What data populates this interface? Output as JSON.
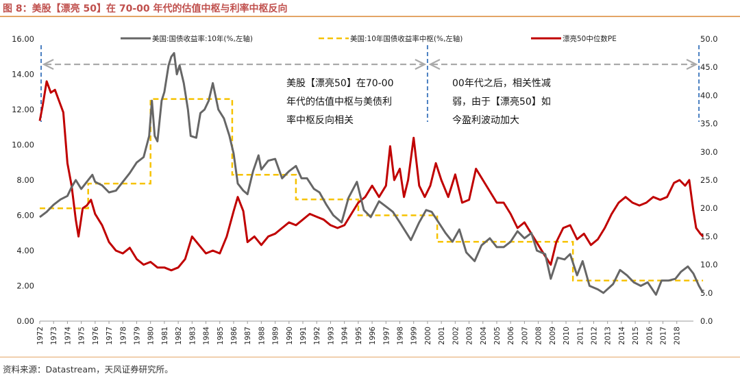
{
  "title": "图 8：美股【漂亮 50】在 70-00 年代的估值中枢与利率中枢反向",
  "source": "资料来源：Datastream，天风证券研究所。",
  "colors": {
    "gray_series": "#666666",
    "yellow_dash": "#f6c200",
    "red_series": "#c00000",
    "divider": "#4a7fc1",
    "arrow": "#aaaaaa"
  },
  "annotations": {
    "left": [
      "美股【漂亮50】在70-00",
      "年代的估值中枢与美债利",
      "率中枢反向相关"
    ],
    "right": [
      "00年代之后，相关性减",
      "弱，由于【漂亮50】如",
      "今盈利波动加大"
    ]
  },
  "chart_data": {
    "type": "line",
    "xlabel": "",
    "ylabel_left": "",
    "ylabel_right": "",
    "x_ticks": [
      "1972",
      "1973",
      "1974",
      "1975",
      "1976",
      "1977",
      "1978",
      "1979",
      "1980",
      "1981",
      "1982",
      "1983",
      "1984",
      "1985",
      "1986",
      "1987",
      "1988",
      "1989",
      "1990",
      "1991",
      "1992",
      "1993",
      "1994",
      "1995",
      "1996",
      "1997",
      "1998",
      "1999",
      "2000",
      "2001",
      "2002",
      "2003",
      "2004",
      "2005",
      "2006",
      "2007",
      "2008",
      "2009",
      "2010",
      "2011",
      "2012",
      "2013",
      "2014",
      "2015",
      "2016",
      "2017",
      "2018"
    ],
    "xlim": [
      1972,
      2019.2
    ],
    "ylim_left": [
      0,
      16
    ],
    "ylim_right": [
      0,
      50
    ],
    "y_ticks_left": [
      "0.00",
      "2.00",
      "4.00",
      "6.00",
      "8.00",
      "10.00",
      "12.00",
      "14.00",
      "16.00"
    ],
    "y_ticks_right": [
      "0.0",
      "5.0",
      "10.0",
      "15.0",
      "20.0",
      "25.0",
      "30.0",
      "35.0",
      "40.0",
      "45.0",
      "50.0"
    ],
    "legend_position": "top",
    "series": [
      {
        "name": "美国:国债收益率:10年(%,左轴)",
        "axis": "left",
        "style": "solid-gray",
        "points": [
          [
            1972.0,
            5.9
          ],
          [
            1972.5,
            6.2
          ],
          [
            1973.0,
            6.6
          ],
          [
            1973.5,
            6.9
          ],
          [
            1974.0,
            7.1
          ],
          [
            1974.3,
            7.6
          ],
          [
            1974.6,
            8.0
          ],
          [
            1975.0,
            7.5
          ],
          [
            1975.5,
            8.0
          ],
          [
            1975.8,
            8.3
          ],
          [
            1976.0,
            7.9
          ],
          [
            1976.5,
            7.7
          ],
          [
            1977.0,
            7.3
          ],
          [
            1977.5,
            7.4
          ],
          [
            1978.0,
            7.9
          ],
          [
            1978.5,
            8.4
          ],
          [
            1979.0,
            9.0
          ],
          [
            1979.5,
            9.3
          ],
          [
            1979.9,
            10.5
          ],
          [
            1980.1,
            12.5
          ],
          [
            1980.3,
            10.5
          ],
          [
            1980.5,
            10.2
          ],
          [
            1980.8,
            12.5
          ],
          [
            1981.0,
            13.0
          ],
          [
            1981.3,
            14.5
          ],
          [
            1981.5,
            15.0
          ],
          [
            1981.7,
            15.2
          ],
          [
            1981.9,
            14.0
          ],
          [
            1982.1,
            14.5
          ],
          [
            1982.4,
            13.5
          ],
          [
            1982.7,
            12.0
          ],
          [
            1982.9,
            10.5
          ],
          [
            1983.3,
            10.4
          ],
          [
            1983.6,
            11.8
          ],
          [
            1983.9,
            12.0
          ],
          [
            1984.2,
            12.5
          ],
          [
            1984.5,
            13.5
          ],
          [
            1984.9,
            12.0
          ],
          [
            1985.3,
            11.5
          ],
          [
            1985.7,
            10.5
          ],
          [
            1986.0,
            9.5
          ],
          [
            1986.3,
            7.8
          ],
          [
            1986.7,
            7.4
          ],
          [
            1987.0,
            7.2
          ],
          [
            1987.4,
            8.5
          ],
          [
            1987.8,
            9.4
          ],
          [
            1988.0,
            8.6
          ],
          [
            1988.5,
            9.1
          ],
          [
            1989.0,
            9.2
          ],
          [
            1989.5,
            8.1
          ],
          [
            1990.0,
            8.5
          ],
          [
            1990.5,
            8.8
          ],
          [
            1990.9,
            8.1
          ],
          [
            1991.3,
            8.1
          ],
          [
            1991.8,
            7.5
          ],
          [
            1992.2,
            7.3
          ],
          [
            1992.7,
            6.6
          ],
          [
            1993.2,
            6.0
          ],
          [
            1993.8,
            5.6
          ],
          [
            1994.3,
            7.0
          ],
          [
            1994.9,
            7.9
          ],
          [
            1995.4,
            6.3
          ],
          [
            1995.9,
            5.9
          ],
          [
            1996.5,
            6.8
          ],
          [
            1997.0,
            6.5
          ],
          [
            1997.5,
            6.2
          ],
          [
            1998.0,
            5.6
          ],
          [
            1998.8,
            4.6
          ],
          [
            1999.4,
            5.6
          ],
          [
            1999.9,
            6.3
          ],
          [
            2000.3,
            6.2
          ],
          [
            2000.8,
            5.6
          ],
          [
            2001.3,
            5.0
          ],
          [
            2001.8,
            4.5
          ],
          [
            2002.3,
            5.2
          ],
          [
            2002.8,
            3.9
          ],
          [
            2003.4,
            3.4
          ],
          [
            2003.9,
            4.3
          ],
          [
            2004.5,
            4.7
          ],
          [
            2005.0,
            4.2
          ],
          [
            2005.5,
            4.2
          ],
          [
            2006.0,
            4.5
          ],
          [
            2006.5,
            5.1
          ],
          [
            2007.0,
            4.7
          ],
          [
            2007.5,
            5.0
          ],
          [
            2007.9,
            4.0
          ],
          [
            2008.5,
            3.8
          ],
          [
            2008.9,
            2.4
          ],
          [
            2009.4,
            3.6
          ],
          [
            2009.9,
            3.5
          ],
          [
            2010.3,
            3.8
          ],
          [
            2010.8,
            2.6
          ],
          [
            2011.2,
            3.4
          ],
          [
            2011.7,
            2.0
          ],
          [
            2012.3,
            1.8
          ],
          [
            2012.7,
            1.6
          ],
          [
            2013.4,
            2.1
          ],
          [
            2013.9,
            2.9
          ],
          [
            2014.4,
            2.6
          ],
          [
            2014.9,
            2.2
          ],
          [
            2015.4,
            2.0
          ],
          [
            2015.9,
            2.2
          ],
          [
            2016.5,
            1.5
          ],
          [
            2016.9,
            2.3
          ],
          [
            2017.4,
            2.3
          ],
          [
            2017.9,
            2.4
          ],
          [
            2018.3,
            2.8
          ],
          [
            2018.8,
            3.1
          ],
          [
            2019.2,
            2.7
          ],
          [
            2019.6,
            2.0
          ],
          [
            2019.9,
            1.6
          ]
        ]
      },
      {
        "name": "美国:10年国债收益率中枢(%,左轴)",
        "axis": "left",
        "style": "dashed-yellow",
        "points": [
          [
            1972.0,
            6.4
          ],
          [
            1975.5,
            6.4
          ],
          [
            1975.5,
            7.8
          ],
          [
            1980.0,
            7.8
          ],
          [
            1980.0,
            12.6
          ],
          [
            1985.9,
            12.6
          ],
          [
            1985.9,
            8.3
          ],
          [
            1990.5,
            8.3
          ],
          [
            1990.5,
            6.9
          ],
          [
            1995.0,
            6.9
          ],
          [
            1995.0,
            6.0
          ],
          [
            2000.7,
            6.0
          ],
          [
            2000.7,
            4.5
          ],
          [
            2010.5,
            4.5
          ],
          [
            2010.5,
            2.3
          ],
          [
            2019.9,
            2.3
          ]
        ]
      },
      {
        "name": "漂亮50中位数PE",
        "axis": "right",
        "style": "solid-red",
        "points": [
          [
            1972.0,
            35.5
          ],
          [
            1972.2,
            38.0
          ],
          [
            1972.5,
            42.5
          ],
          [
            1972.8,
            40.5
          ],
          [
            1973.1,
            41.0
          ],
          [
            1973.4,
            39.0
          ],
          [
            1973.7,
            37.0
          ],
          [
            1974.0,
            28.0
          ],
          [
            1974.3,
            24.0
          ],
          [
            1974.6,
            18.0
          ],
          [
            1974.8,
            15.0
          ],
          [
            1975.1,
            20.0
          ],
          [
            1975.4,
            20.5
          ],
          [
            1975.7,
            21.5
          ],
          [
            1976.0,
            19.0
          ],
          [
            1976.5,
            17.0
          ],
          [
            1977.0,
            14.0
          ],
          [
            1977.5,
            12.5
          ],
          [
            1978.0,
            12.0
          ],
          [
            1978.5,
            13.0
          ],
          [
            1979.0,
            11.0
          ],
          [
            1979.5,
            10.0
          ],
          [
            1980.0,
            10.5
          ],
          [
            1980.5,
            9.5
          ],
          [
            1981.0,
            9.5
          ],
          [
            1981.5,
            9.0
          ],
          [
            1982.0,
            9.5
          ],
          [
            1982.5,
            11.0
          ],
          [
            1983.0,
            15.0
          ],
          [
            1983.5,
            13.5
          ],
          [
            1984.0,
            12.0
          ],
          [
            1984.5,
            12.5
          ],
          [
            1985.0,
            12.0
          ],
          [
            1985.5,
            15.0
          ],
          [
            1986.0,
            19.5
          ],
          [
            1986.3,
            22.0
          ],
          [
            1986.7,
            19.5
          ],
          [
            1987.0,
            14.0
          ],
          [
            1987.5,
            15.0
          ],
          [
            1988.0,
            13.5
          ],
          [
            1988.5,
            15.0
          ],
          [
            1989.0,
            15.5
          ],
          [
            1989.5,
            16.5
          ],
          [
            1990.0,
            17.5
          ],
          [
            1990.5,
            17.0
          ],
          [
            1991.0,
            18.0
          ],
          [
            1991.5,
            19.0
          ],
          [
            1992.0,
            18.5
          ],
          [
            1992.5,
            18.0
          ],
          [
            1993.0,
            17.0
          ],
          [
            1993.5,
            16.5
          ],
          [
            1994.0,
            17.0
          ],
          [
            1994.5,
            19.0
          ],
          [
            1995.0,
            21.0
          ],
          [
            1995.5,
            22.0
          ],
          [
            1996.0,
            24.0
          ],
          [
            1996.5,
            22.0
          ],
          [
            1997.0,
            24.0
          ],
          [
            1997.3,
            31.0
          ],
          [
            1997.6,
            25.0
          ],
          [
            1998.0,
            27.0
          ],
          [
            1998.3,
            22.0
          ],
          [
            1998.6,
            25.0
          ],
          [
            1999.0,
            32.5
          ],
          [
            1999.4,
            24.0
          ],
          [
            1999.8,
            22.0
          ],
          [
            2000.2,
            24.0
          ],
          [
            2000.6,
            28.0
          ],
          [
            2001.0,
            25.0
          ],
          [
            2001.5,
            22.0
          ],
          [
            2002.0,
            26.0
          ],
          [
            2002.5,
            21.0
          ],
          [
            2003.0,
            21.5
          ],
          [
            2003.5,
            27.0
          ],
          [
            2004.0,
            25.0
          ],
          [
            2004.5,
            23.0
          ],
          [
            2005.0,
            21.0
          ],
          [
            2005.5,
            21.0
          ],
          [
            2006.0,
            19.0
          ],
          [
            2006.5,
            16.5
          ],
          [
            2007.0,
            17.5
          ],
          [
            2007.5,
            15.5
          ],
          [
            2008.0,
            13.5
          ],
          [
            2008.5,
            11.5
          ],
          [
            2008.9,
            10.0
          ],
          [
            2009.3,
            14.0
          ],
          [
            2009.8,
            16.5
          ],
          [
            2010.3,
            17.0
          ],
          [
            2010.8,
            14.5
          ],
          [
            2011.3,
            15.5
          ],
          [
            2011.8,
            13.5
          ],
          [
            2012.3,
            14.5
          ],
          [
            2012.8,
            16.5
          ],
          [
            2013.3,
            19.0
          ],
          [
            2013.8,
            21.0
          ],
          [
            2014.3,
            22.0
          ],
          [
            2014.8,
            21.0
          ],
          [
            2015.3,
            20.5
          ],
          [
            2015.8,
            21.0
          ],
          [
            2016.3,
            22.0
          ],
          [
            2016.8,
            21.5
          ],
          [
            2017.3,
            22.0
          ],
          [
            2017.8,
            24.5
          ],
          [
            2018.2,
            25.0
          ],
          [
            2018.6,
            24.0
          ],
          [
            2018.9,
            25.0
          ],
          [
            2019.2,
            19.5
          ],
          [
            2019.4,
            16.5
          ],
          [
            2019.7,
            15.5
          ],
          [
            2019.9,
            15.0
          ]
        ]
      }
    ]
  }
}
